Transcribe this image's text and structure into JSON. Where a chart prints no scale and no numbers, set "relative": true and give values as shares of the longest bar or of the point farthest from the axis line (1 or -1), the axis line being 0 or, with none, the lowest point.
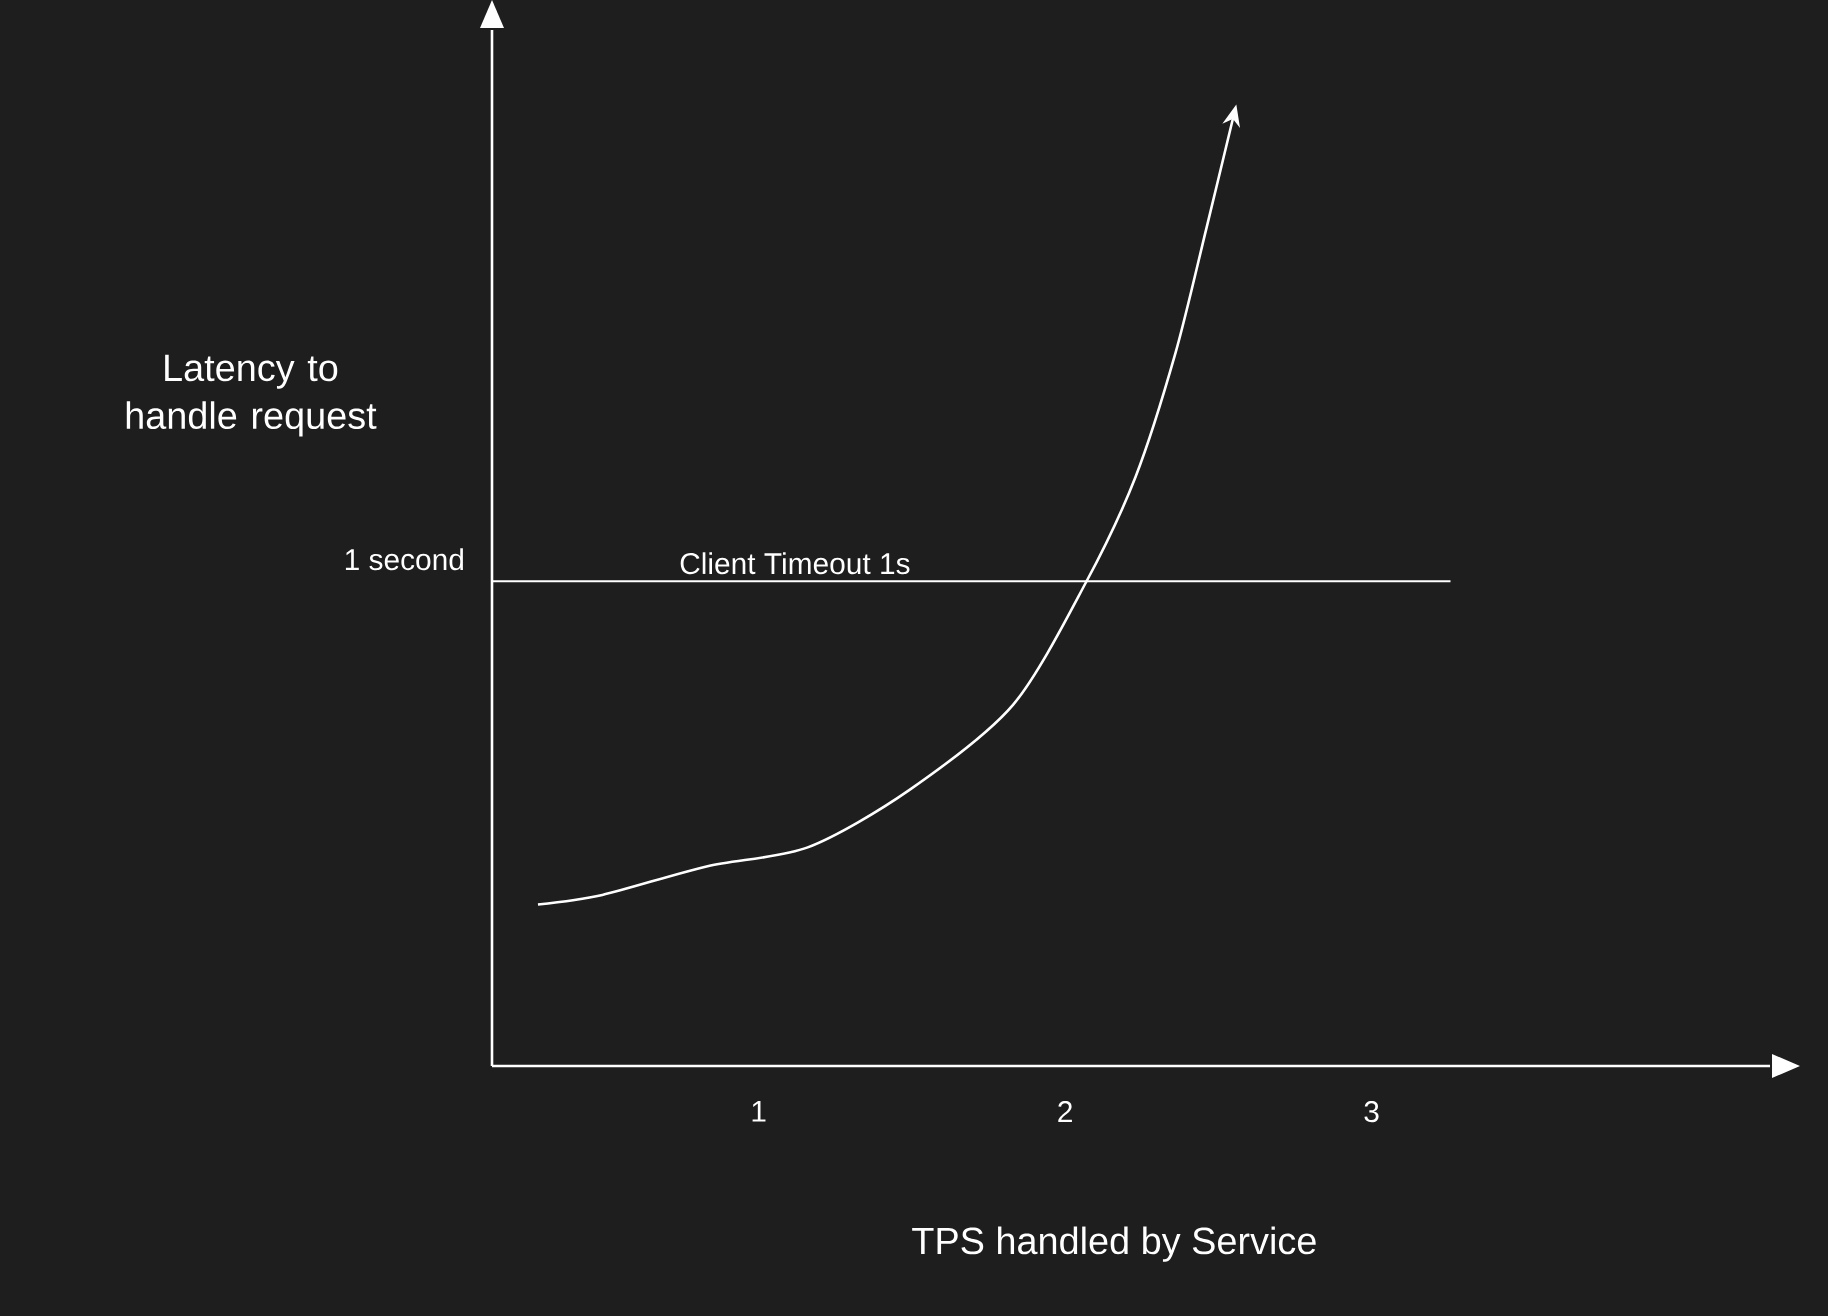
{
  "chart_data": {
    "type": "line",
    "xlabel": "TPS handled by Service",
    "ylabel": "Latency to handle request",
    "relative": true,
    "xlim": [
      0.13,
      4.3
    ],
    "xticks": [
      1,
      2,
      3
    ],
    "grid": false,
    "marker": "none",
    "line_style": "solid",
    "annotations": [
      "1 second"
    ],
    "ref_lines": [
      {
        "axis": "y",
        "value": 0.51,
        "label": "Client Timeout 1s",
        "color": "#ffffff",
        "line_style": "solid"
      }
    ],
    "series": [
      {
        "color": "#ffffff",
        "x": [
          0.28,
          0.49,
          0.83,
          1.16,
          1.49,
          1.83,
          2.07,
          2.23,
          2.36,
          2.46,
          2.55
        ],
        "values": [
          0.17,
          0.18,
          0.21,
          0.23,
          0.29,
          0.38,
          0.51,
          0.62,
          0.75,
          0.88,
          1.0
        ]
      }
    ]
  }
}
